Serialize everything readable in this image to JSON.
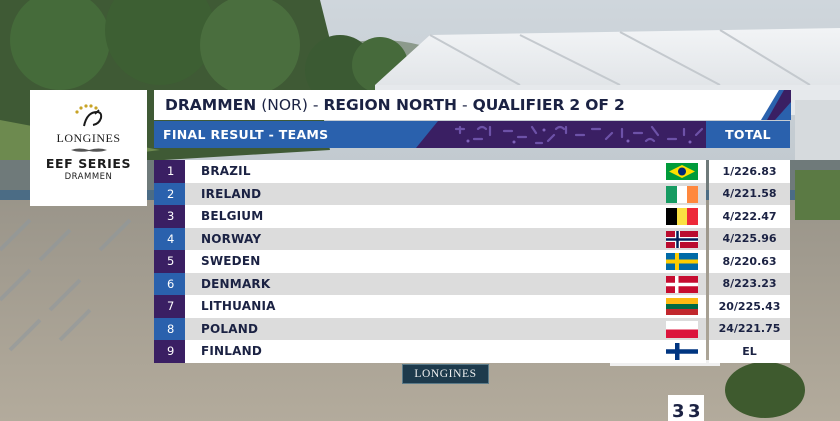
{
  "logo": {
    "brand": "LONGINES",
    "series": "EEF SERIES",
    "location": "DRAMMEN"
  },
  "title": {
    "event": "DRAMMEN",
    "country": "(NOR)",
    "region": "REGION NORTH",
    "qualifier": "QUALIFIER",
    "qualifier_num": "2",
    "of_label": "OF",
    "qualifier_total": "2",
    "separator": "-"
  },
  "header": {
    "left_label": "FINAL RESULT - TEAMS",
    "right_label": "TOTAL"
  },
  "results": [
    {
      "rank": "1",
      "team": "BRAZIL",
      "flag": "brazil-flag",
      "total": "1/226.83"
    },
    {
      "rank": "2",
      "team": "IRELAND",
      "flag": "ireland-flag",
      "total": "4/221.58"
    },
    {
      "rank": "3",
      "team": "BELGIUM",
      "flag": "belgium-flag",
      "total": "4/222.47"
    },
    {
      "rank": "4",
      "team": "NORWAY",
      "flag": "norway-flag",
      "total": "4/225.96"
    },
    {
      "rank": "5",
      "team": "SWEDEN",
      "flag": "sweden-flag",
      "total": "8/220.63"
    },
    {
      "rank": "6",
      "team": "DENMARK",
      "flag": "denmark-flag",
      "total": "8/223.23"
    },
    {
      "rank": "7",
      "team": "LITHUANIA",
      "flag": "lithuania-flag",
      "total": "20/225.43"
    },
    {
      "rank": "8",
      "team": "POLAND",
      "flag": "poland-flag",
      "total": "24/221.75"
    },
    {
      "rank": "9",
      "team": "FINLAND",
      "flag": "finland-flag",
      "total": "EL"
    }
  ],
  "sponsor": {
    "label": "LONGINES"
  },
  "colors": {
    "navy": "#1b2243",
    "blue": "#2a61ad",
    "purple": "#3a1f63"
  }
}
